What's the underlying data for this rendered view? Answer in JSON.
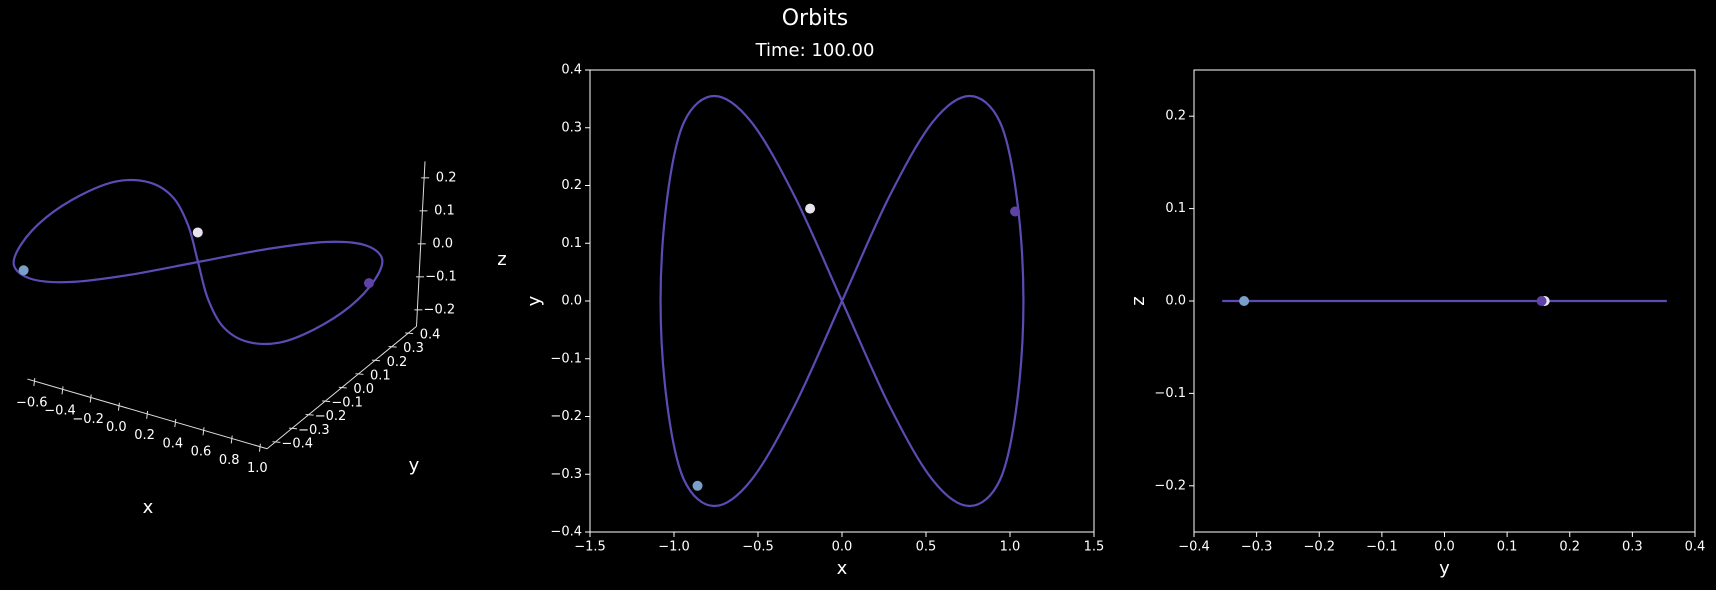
{
  "chart_data": [
    {
      "type": "line3d",
      "xlim": [
        -0.65,
        1.05
      ],
      "ylim": [
        -0.45,
        0.45
      ],
      "zlim": [
        -0.25,
        0.25
      ],
      "xticks": [
        {
          "value": -0.6,
          "label": "−0.6"
        },
        {
          "value": -0.4,
          "label": "−0.4"
        },
        {
          "value": -0.2,
          "label": "−0.2"
        },
        {
          "value": 0,
          "label": "0.0"
        },
        0.2,
        0.4,
        0.6,
        0.8,
        {
          "value": 1,
          "label": "1.0"
        }
      ],
      "yticks": [
        {
          "value": -0.4,
          "label": "−0.4"
        },
        {
          "value": -0.3,
          "label": "−0.3"
        },
        {
          "value": -0.2,
          "label": "−0.2"
        },
        {
          "value": -0.1,
          "label": "−0.1"
        },
        {
          "value": 0,
          "label": "0.0"
        },
        0.1,
        0.2,
        0.3,
        0.4
      ],
      "zticks": [
        {
          "value": -0.2,
          "label": "−0.2"
        },
        {
          "value": -0.1,
          "label": "−0.1"
        },
        {
          "value": 0,
          "label": "0.0"
        },
        0.1,
        0.2
      ],
      "xlabel": "x",
      "ylabel": "y",
      "zlabel": "z",
      "orbit": {
        "color": "#5b4cb5",
        "x": [
          0,
          0.28,
          0.54,
          0.76,
          0.94,
          1.04,
          1.08,
          1.04,
          0.94,
          0.76,
          0.54,
          0.28,
          0,
          -0.28,
          -0.54,
          -0.76,
          -0.94,
          -1.04,
          -1.08,
          -1.04,
          -0.94,
          -0.76,
          -0.54,
          -0.28,
          0
        ],
        "y": [
          0,
          0.18,
          0.31,
          0.355,
          0.31,
          0.18,
          0,
          -0.18,
          -0.31,
          -0.355,
          -0.31,
          -0.18,
          0,
          0.18,
          0.31,
          0.355,
          0.31,
          0.18,
          0,
          -0.18,
          -0.31,
          -0.355,
          -0.31,
          -0.18,
          0
        ],
        "z": [
          0,
          0,
          0,
          0,
          0,
          0,
          0,
          0,
          0,
          0,
          0,
          0,
          0,
          0,
          0,
          0,
          0,
          0,
          0,
          0,
          0,
          0,
          0,
          0,
          0
        ]
      },
      "bodies": [
        {
          "color": "#7b9fcb",
          "x": -0.86,
          "y": -0.32,
          "z": 0
        },
        {
          "color": "#e9e3ee",
          "x": -0.19,
          "y": 0.16,
          "z": 0
        },
        {
          "color": "#5e42a6",
          "x": 1.03,
          "y": 0.155,
          "z": 0
        }
      ]
    },
    {
      "type": "line",
      "title": "Orbits",
      "subtitle": "Time: 100.00",
      "xlim": [
        -1.5,
        1.5
      ],
      "ylim": [
        -0.4,
        0.4
      ],
      "xticks": [
        {
          "value": -1.5,
          "label": "−1.5"
        },
        {
          "value": -1,
          "label": "−1.0"
        },
        {
          "value": -0.5,
          "label": "−0.5"
        },
        {
          "value": 0,
          "label": "0.0"
        },
        0.5,
        {
          "value": 1,
          "label": "1.0"
        },
        1.5
      ],
      "yticks": [
        {
          "value": -0.4,
          "label": "−0.4"
        },
        {
          "value": -0.3,
          "label": "−0.3"
        },
        {
          "value": -0.2,
          "label": "−0.2"
        },
        {
          "value": -0.1,
          "label": "−0.1"
        },
        {
          "value": 0,
          "label": "0.0"
        },
        0.1,
        0.2,
        0.3,
        0.4
      ],
      "xlabel": "x",
      "ylabel": "y",
      "orbit": {
        "color": "#5b4cb5",
        "x": [
          0,
          0.28,
          0.54,
          0.76,
          0.94,
          1.04,
          1.08,
          1.04,
          0.94,
          0.76,
          0.54,
          0.28,
          0,
          -0.28,
          -0.54,
          -0.76,
          -0.94,
          -1.04,
          -1.08,
          -1.04,
          -0.94,
          -0.76,
          -0.54,
          -0.28,
          0
        ],
        "y": [
          0,
          0.18,
          0.31,
          0.355,
          0.31,
          0.18,
          0,
          -0.18,
          -0.31,
          -0.355,
          -0.31,
          -0.18,
          0,
          0.18,
          0.31,
          0.355,
          0.31,
          0.18,
          0,
          -0.18,
          -0.31,
          -0.355,
          -0.31,
          -0.18,
          0
        ]
      },
      "bodies": [
        {
          "color": "#7b9fcb",
          "x": -0.86,
          "y": -0.32
        },
        {
          "color": "#e9e3ee",
          "x": -0.19,
          "y": 0.16
        },
        {
          "color": "#5e42a6",
          "x": 1.03,
          "y": 0.155
        }
      ]
    },
    {
      "type": "line",
      "xlim": [
        -0.4,
        0.4
      ],
      "ylim": [
        -0.25,
        0.25
      ],
      "xticks": [
        {
          "value": -0.4,
          "label": "−0.4"
        },
        {
          "value": -0.3,
          "label": "−0.3"
        },
        {
          "value": -0.2,
          "label": "−0.2"
        },
        {
          "value": -0.1,
          "label": "−0.1"
        },
        {
          "value": 0,
          "label": "0.0"
        },
        0.1,
        0.2,
        0.3,
        0.4
      ],
      "yticks": [
        {
          "value": -0.2,
          "label": "−0.2"
        },
        {
          "value": -0.1,
          "label": "−0.1"
        },
        {
          "value": 0,
          "label": "0.0"
        },
        0.1,
        0.2
      ],
      "xlabel": "y",
      "ylabel": "z",
      "orbit": {
        "color": "#5b4cb5",
        "x": [
          0,
          0.18,
          0.31,
          0.355,
          0.31,
          0.18,
          0,
          -0.18,
          -0.31,
          -0.355,
          -0.31,
          -0.18,
          0,
          0.18,
          0.31,
          0.355,
          0.31,
          0.18,
          0,
          -0.18,
          -0.31,
          -0.355,
          -0.31,
          -0.18,
          0
        ],
        "y": [
          0,
          0,
          0,
          0,
          0,
          0,
          0,
          0,
          0,
          0,
          0,
          0,
          0,
          0,
          0,
          0,
          0,
          0,
          0,
          0,
          0,
          0,
          0,
          0,
          0
        ]
      },
      "bodies": [
        {
          "color": "#7b9fcb",
          "x": -0.32,
          "y": 0
        },
        {
          "color": "#e9e3ee",
          "x": 0.16,
          "y": 0
        },
        {
          "color": "#5e42a6",
          "x": 0.155,
          "y": 0
        }
      ]
    }
  ]
}
